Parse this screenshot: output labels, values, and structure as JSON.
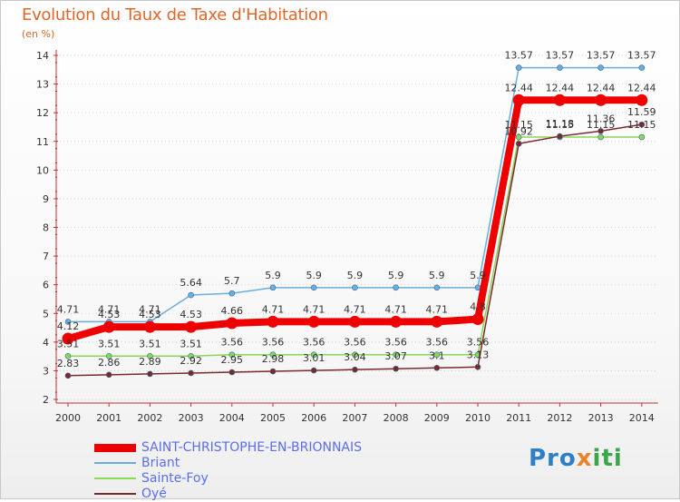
{
  "header": {
    "title": "Evolution du Taux de Taxe d'Habitation",
    "subtitle": "(en %)"
  },
  "brand": {
    "part1": "Pro",
    "part2": "x",
    "part3": "iti"
  },
  "chart_data": {
    "type": "line",
    "title": "Evolution du Taux de Taxe d'Habitation",
    "ylabel": "(en %)",
    "xlabel": "",
    "ylim": [
      2,
      14
    ],
    "yticks": [
      2,
      3,
      4,
      5,
      6,
      7,
      8,
      9,
      10,
      11,
      12,
      13,
      14
    ],
    "categories": [
      "2000",
      "2001",
      "2002",
      "2003",
      "2004",
      "2005",
      "2006",
      "2007",
      "2008",
      "2009",
      "2010",
      "2011",
      "2012",
      "2013",
      "2014"
    ],
    "legend_position": "bottom-left",
    "series": [
      {
        "name": "SAINT-CHRISTOPHE-EN-BRIONNAIS",
        "color": "#ee0000",
        "values": [
          4.12,
          4.53,
          4.53,
          4.53,
          4.66,
          4.71,
          4.71,
          4.71,
          4.71,
          4.71,
          4.8,
          12.44,
          12.44,
          12.44,
          12.44
        ],
        "labels": [
          "4.12",
          "4.53",
          "4.53",
          "4.53",
          "4.66",
          "4.71",
          "4.71",
          "4.71",
          "4.71",
          "4.71",
          "4.8",
          "12.44",
          "12.44",
          "12.44",
          "12.44"
        ]
      },
      {
        "name": "Briant",
        "color": "#6aaee0",
        "values": [
          4.71,
          4.71,
          4.71,
          5.64,
          5.7,
          5.9,
          5.9,
          5.9,
          5.9,
          5.9,
          5.9,
          13.57,
          13.57,
          13.57,
          13.57
        ],
        "labels": [
          "4.71",
          "4.71",
          "4.71",
          "5.64",
          "5.7",
          "5.9",
          "5.9",
          "5.9",
          "5.9",
          "5.9",
          "5.9",
          "13.57",
          "13.57",
          "13.57",
          "13.57"
        ]
      },
      {
        "name": "Sainte-Foy",
        "color": "#88d858",
        "values": [
          3.51,
          3.51,
          3.51,
          3.51,
          3.56,
          3.56,
          3.56,
          3.56,
          3.56,
          3.56,
          3.56,
          11.15,
          11.15,
          11.15,
          11.15
        ],
        "labels": [
          "3.51",
          "3.51",
          "3.51",
          "3.51",
          "3.56",
          "3.56",
          "3.56",
          "3.56",
          "3.56",
          "3.56",
          "3.56",
          "11.15",
          "11.15",
          "11.15",
          "11.15"
        ]
      },
      {
        "name": "Oyé",
        "color": "#7a2a2a",
        "values": [
          2.83,
          2.86,
          2.89,
          2.92,
          2.95,
          2.98,
          3.01,
          3.04,
          3.07,
          3.1,
          3.13,
          10.92,
          11.18,
          11.36,
          11.59
        ],
        "labels": [
          "2.83",
          "2.86",
          "2.89",
          "2.92",
          "2.95",
          "2.98",
          "3.01",
          "3.04",
          "3.07",
          "3.1",
          "3.13",
          "10.92",
          "11.18",
          "11.36",
          "11.59"
        ]
      }
    ]
  }
}
